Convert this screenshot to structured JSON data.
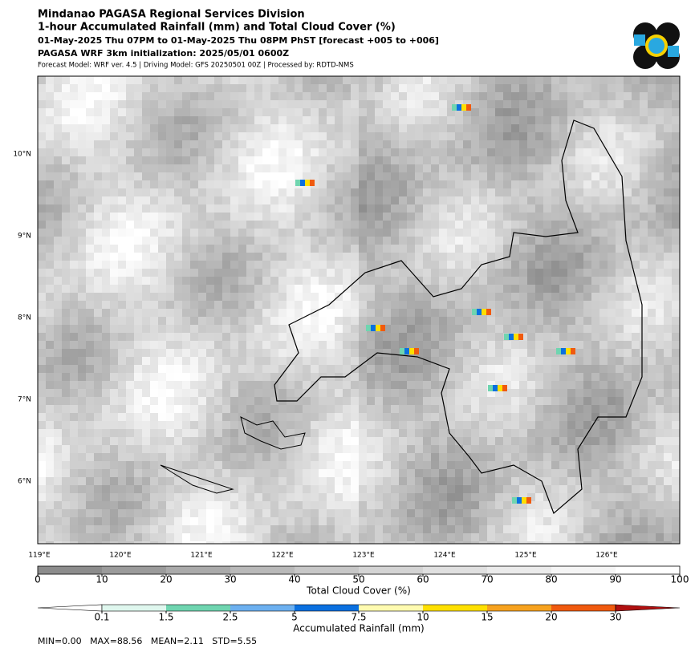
{
  "header": {
    "org": "Mindanao PAGASA Regional Services Division",
    "title": "1-hour Accumulated Rainfall (mm) and Total Cloud Cover (%)",
    "period": "01-May-2025 Thu 07PM to 01-May-2025 Thu 08PM PhST [forecast +005 to +006]",
    "init": "PAGASA WRF 3km initialization: 2025/05/01 0600Z",
    "model": "Forecast Model: WRF ver. 4.5 | Driving Model: GFS 20250501 00Z | Processed by: RDTD-NMS"
  },
  "map": {
    "lon_labels": [
      "119°E",
      "120°E",
      "121°E",
      "122°E",
      "123°E",
      "124°E",
      "125°E",
      "126°E"
    ],
    "lat_labels": [
      "10°N",
      "9°N",
      "8°N",
      "7°N",
      "6°N"
    ]
  },
  "cloud_colorbar": {
    "label": "Total Cloud Cover (%)",
    "ticks": [
      0,
      10,
      20,
      30,
      40,
      50,
      60,
      70,
      80,
      90,
      100
    ],
    "colors": [
      "#8c8c8c",
      "#9b9b9b",
      "#aaaaaa",
      "#b9b9b9",
      "#c7c7c7",
      "#d4d4d4",
      "#e0e0e0",
      "#ebebeb",
      "#f5f5f5",
      "#ffffff"
    ]
  },
  "rain_colorbar": {
    "label": "Accumulated Rainfall (mm)",
    "ticks": [
      0.1,
      1.5,
      2.5,
      5,
      7.5,
      10,
      15,
      20,
      30
    ],
    "colors": [
      "#ffffff",
      "#dff7ee",
      "#6fd5b0",
      "#6cb0f0",
      "#0a70e0",
      "#fffbb0",
      "#ffe000",
      "#f7a21e",
      "#f05a0e",
      "#b01010"
    ]
  },
  "stats": "MIN=0.00   MAX=88.56   MEAN=2.11   STD=5.55"
}
